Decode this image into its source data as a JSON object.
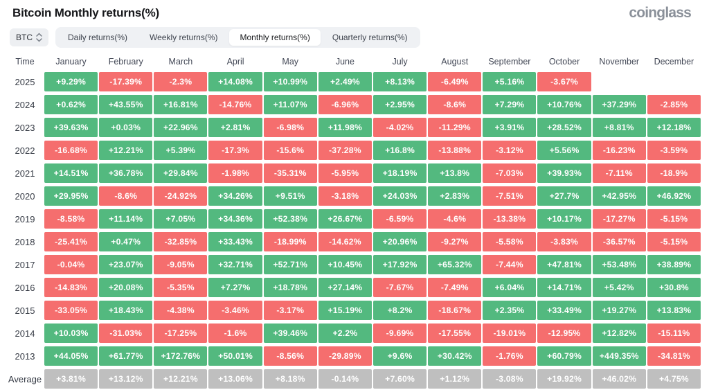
{
  "header": {
    "title": "Bitcoin Monthly returns(%)",
    "logo": "coinglass"
  },
  "controls": {
    "coin_selector": {
      "value": "BTC"
    },
    "tabs": [
      {
        "label": "Daily returns(%)",
        "active": false
      },
      {
        "label": "Weekly returns(%)",
        "active": false
      },
      {
        "label": "Monthly returns(%)",
        "active": true
      },
      {
        "label": "Quarterly returns(%)",
        "active": false
      }
    ]
  },
  "colors": {
    "positive": "#53b97f",
    "negative": "#f56e6e",
    "average": "#bfbfbf"
  },
  "table": {
    "time_header": "Time",
    "months": [
      "January",
      "February",
      "March",
      "April",
      "May",
      "June",
      "July",
      "August",
      "September",
      "October",
      "November",
      "December"
    ],
    "rows": [
      {
        "year": "2025",
        "values": [
          "+9.29%",
          "-17.39%",
          "-2.3%",
          "+14.08%",
          "+10.99%",
          "+2.49%",
          "+8.13%",
          "-6.49%",
          "+5.16%",
          "-3.67%",
          "",
          ""
        ]
      },
      {
        "year": "2024",
        "values": [
          "+0.62%",
          "+43.55%",
          "+16.81%",
          "-14.76%",
          "+11.07%",
          "-6.96%",
          "+2.95%",
          "-8.6%",
          "+7.29%",
          "+10.76%",
          "+37.29%",
          "-2.85%"
        ]
      },
      {
        "year": "2023",
        "values": [
          "+39.63%",
          "+0.03%",
          "+22.96%",
          "+2.81%",
          "-6.98%",
          "+11.98%",
          "-4.02%",
          "-11.29%",
          "+3.91%",
          "+28.52%",
          "+8.81%",
          "+12.18%"
        ]
      },
      {
        "year": "2022",
        "values": [
          "-16.68%",
          "+12.21%",
          "+5.39%",
          "-17.3%",
          "-15.6%",
          "-37.28%",
          "+16.8%",
          "-13.88%",
          "-3.12%",
          "+5.56%",
          "-16.23%",
          "-3.59%"
        ]
      },
      {
        "year": "2021",
        "values": [
          "+14.51%",
          "+36.78%",
          "+29.84%",
          "-1.98%",
          "-35.31%",
          "-5.95%",
          "+18.19%",
          "+13.8%",
          "-7.03%",
          "+39.93%",
          "-7.11%",
          "-18.9%"
        ]
      },
      {
        "year": "2020",
        "values": [
          "+29.95%",
          "-8.6%",
          "-24.92%",
          "+34.26%",
          "+9.51%",
          "-3.18%",
          "+24.03%",
          "+2.83%",
          "-7.51%",
          "+27.7%",
          "+42.95%",
          "+46.92%"
        ]
      },
      {
        "year": "2019",
        "values": [
          "-8.58%",
          "+11.14%",
          "+7.05%",
          "+34.36%",
          "+52.38%",
          "+26.67%",
          "-6.59%",
          "-4.6%",
          "-13.38%",
          "+10.17%",
          "-17.27%",
          "-5.15%"
        ]
      },
      {
        "year": "2018",
        "values": [
          "-25.41%",
          "+0.47%",
          "-32.85%",
          "+33.43%",
          "-18.99%",
          "-14.62%",
          "+20.96%",
          "-9.27%",
          "-5.58%",
          "-3.83%",
          "-36.57%",
          "-5.15%"
        ]
      },
      {
        "year": "2017",
        "values": [
          "-0.04%",
          "+23.07%",
          "-9.05%",
          "+32.71%",
          "+52.71%",
          "+10.45%",
          "+17.92%",
          "+65.32%",
          "-7.44%",
          "+47.81%",
          "+53.48%",
          "+38.89%"
        ]
      },
      {
        "year": "2016",
        "values": [
          "-14.83%",
          "+20.08%",
          "-5.35%",
          "+7.27%",
          "+18.78%",
          "+27.14%",
          "-7.67%",
          "-7.49%",
          "+6.04%",
          "+14.71%",
          "+5.42%",
          "+30.8%"
        ]
      },
      {
        "year": "2015",
        "values": [
          "-33.05%",
          "+18.43%",
          "-4.38%",
          "-3.46%",
          "-3.17%",
          "+15.19%",
          "+8.2%",
          "-18.67%",
          "+2.35%",
          "+33.49%",
          "+19.27%",
          "+13.83%"
        ]
      },
      {
        "year": "2014",
        "values": [
          "+10.03%",
          "-31.03%",
          "-17.25%",
          "-1.6%",
          "+39.46%",
          "+2.2%",
          "-9.69%",
          "-17.55%",
          "-19.01%",
          "-12.95%",
          "+12.82%",
          "-15.11%"
        ]
      },
      {
        "year": "2013",
        "values": [
          "+44.05%",
          "+61.77%",
          "+172.76%",
          "+50.01%",
          "-8.56%",
          "-29.89%",
          "+9.6%",
          "+30.42%",
          "-1.76%",
          "+60.79%",
          "+449.35%",
          "-34.81%"
        ]
      }
    ],
    "average": {
      "label": "Average",
      "values": [
        "+3.81%",
        "+13.12%",
        "+12.21%",
        "+13.06%",
        "+8.18%",
        "-0.14%",
        "+7.60%",
        "+1.12%",
        "-3.08%",
        "+19.92%",
        "+46.02%",
        "+4.75%"
      ]
    }
  },
  "chart_data": {
    "type": "heatmap",
    "title": "Bitcoin Monthly returns(%)",
    "x": [
      "January",
      "February",
      "March",
      "April",
      "May",
      "June",
      "July",
      "August",
      "September",
      "October",
      "November",
      "December"
    ],
    "y": [
      "2025",
      "2024",
      "2023",
      "2022",
      "2021",
      "2020",
      "2019",
      "2018",
      "2017",
      "2016",
      "2015",
      "2014",
      "2013",
      "Average"
    ],
    "values": [
      [
        9.29,
        -17.39,
        -2.3,
        14.08,
        10.99,
        2.49,
        8.13,
        -6.49,
        5.16,
        -3.67,
        null,
        null
      ],
      [
        0.62,
        43.55,
        16.81,
        -14.76,
        11.07,
        -6.96,
        2.95,
        -8.6,
        7.29,
        10.76,
        37.29,
        -2.85
      ],
      [
        39.63,
        0.03,
        22.96,
        2.81,
        -6.98,
        11.98,
        -4.02,
        -11.29,
        3.91,
        28.52,
        8.81,
        12.18
      ],
      [
        -16.68,
        12.21,
        5.39,
        -17.3,
        -15.6,
        -37.28,
        16.8,
        -13.88,
        -3.12,
        5.56,
        -16.23,
        -3.59
      ],
      [
        14.51,
        36.78,
        29.84,
        -1.98,
        -35.31,
        -5.95,
        18.19,
        13.8,
        -7.03,
        39.93,
        -7.11,
        -18.9
      ],
      [
        29.95,
        -8.6,
        -24.92,
        34.26,
        9.51,
        -3.18,
        24.03,
        2.83,
        -7.51,
        27.7,
        42.95,
        46.92
      ],
      [
        -8.58,
        11.14,
        7.05,
        34.36,
        52.38,
        26.67,
        -6.59,
        -4.6,
        -13.38,
        10.17,
        -17.27,
        -5.15
      ],
      [
        -25.41,
        0.47,
        -32.85,
        33.43,
        -18.99,
        -14.62,
        20.96,
        -9.27,
        -5.58,
        -3.83,
        -36.57,
        -5.15
      ],
      [
        -0.04,
        23.07,
        -9.05,
        32.71,
        52.71,
        10.45,
        17.92,
        65.32,
        -7.44,
        47.81,
        53.48,
        38.89
      ],
      [
        -14.83,
        20.08,
        -5.35,
        7.27,
        18.78,
        27.14,
        -7.67,
        -7.49,
        6.04,
        14.71,
        5.42,
        30.8
      ],
      [
        -33.05,
        18.43,
        -4.38,
        -3.46,
        -3.17,
        15.19,
        8.2,
        -18.67,
        2.35,
        33.49,
        19.27,
        13.83
      ],
      [
        10.03,
        -31.03,
        -17.25,
        -1.6,
        39.46,
        2.2,
        -9.69,
        -17.55,
        -19.01,
        -12.95,
        12.82,
        -15.11
      ],
      [
        44.05,
        61.77,
        172.76,
        50.01,
        -8.56,
        -29.89,
        9.6,
        30.42,
        -1.76,
        60.79,
        449.35,
        -34.81
      ],
      [
        3.81,
        13.12,
        12.21,
        13.06,
        8.18,
        -0.14,
        7.6,
        1.12,
        -3.08,
        19.92,
        46.02,
        4.75
      ]
    ],
    "legend": "green = positive monthly return, red = negative monthly return, gray = average row",
    "units": "%"
  }
}
